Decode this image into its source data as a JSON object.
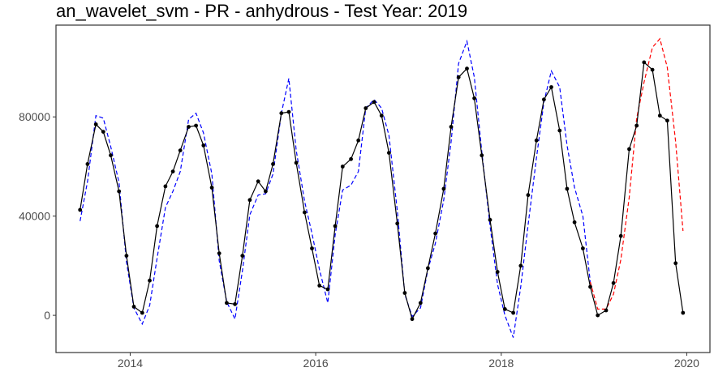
{
  "chart_data": {
    "type": "line",
    "title": "an_wavelet_svm - PR - anhydrous - Test Year: 2019",
    "xlabel": "",
    "ylabel": "",
    "xlim": [
      2013.2,
      2020.25
    ],
    "ylim": [
      -15000,
      117000
    ],
    "x_ticks": [
      2014,
      2016,
      2018,
      2020
    ],
    "y_ticks": [
      0,
      40000,
      80000
    ],
    "grid": false,
    "legend": "none",
    "colors": {
      "actual": "#000000",
      "fitted": "#0000ff",
      "forecast": "#ff0000"
    },
    "series": [
      {
        "role": "actual",
        "style": "solid-with-points",
        "x": [
          2013.46,
          2013.54,
          2013.63,
          2013.71,
          2013.79,
          2013.88,
          2013.96,
          2014.04,
          2014.13,
          2014.21,
          2014.29,
          2014.38,
          2014.46,
          2014.54,
          2014.63,
          2014.71,
          2014.79,
          2014.88,
          2014.96,
          2015.04,
          2015.13,
          2015.21,
          2015.29,
          2015.38,
          2015.46,
          2015.54,
          2015.63,
          2015.71,
          2015.79,
          2015.88,
          2015.96,
          2016.04,
          2016.13,
          2016.21,
          2016.29,
          2016.38,
          2016.46,
          2016.54,
          2016.63,
          2016.71,
          2016.79,
          2016.88,
          2016.96,
          2017.04,
          2017.13,
          2017.21,
          2017.29,
          2017.38,
          2017.46,
          2017.54,
          2017.63,
          2017.71,
          2017.79,
          2017.88,
          2017.96,
          2018.04,
          2018.13,
          2018.21,
          2018.29,
          2018.38,
          2018.46,
          2018.54,
          2018.63,
          2018.71,
          2018.79,
          2018.88,
          2018.96,
          2019.04,
          2019.13,
          2019.21,
          2019.29,
          2019.38,
          2019.46,
          2019.54,
          2019.63,
          2019.71,
          2019.79,
          2019.88,
          2019.96
        ],
        "y": [
          42500,
          61000,
          77000,
          74000,
          64500,
          50000,
          24000,
          3500,
          1000,
          14000,
          36000,
          52000,
          58000,
          66500,
          76000,
          76500,
          68500,
          51500,
          25000,
          5000,
          4500,
          24000,
          46500,
          54000,
          50000,
          61000,
          81500,
          82000,
          61500,
          41500,
          27000,
          12000,
          10500,
          36000,
          60000,
          63000,
          70500,
          83500,
          86000,
          80500,
          65500,
          37000,
          9000,
          -1500,
          5000,
          19000,
          33000,
          51000,
          76000,
          96000,
          99500,
          87500,
          64500,
          38500,
          17500,
          2500,
          1000,
          20000,
          48500,
          70500,
          87000,
          92000,
          74500,
          51000,
          37500,
          27000,
          11500,
          0,
          2000,
          13000,
          32000,
          67000,
          76500,
          102000,
          99000,
          80500,
          78500,
          21000,
          1000
        ]
      },
      {
        "role": "fitted",
        "style": "dashed",
        "x": [
          2013.46,
          2013.54,
          2013.63,
          2013.71,
          2013.79,
          2013.88,
          2013.96,
          2014.04,
          2014.13,
          2014.21,
          2014.29,
          2014.38,
          2014.46,
          2014.54,
          2014.63,
          2014.71,
          2014.79,
          2014.88,
          2014.96,
          2015.04,
          2015.13,
          2015.21,
          2015.29,
          2015.38,
          2015.46,
          2015.54,
          2015.63,
          2015.71,
          2015.79,
          2015.88,
          2015.96,
          2016.04,
          2016.13,
          2016.21,
          2016.29,
          2016.38,
          2016.46,
          2016.54,
          2016.63,
          2016.71,
          2016.79,
          2016.88,
          2016.96,
          2017.04,
          2017.13,
          2017.21,
          2017.29,
          2017.38,
          2017.46,
          2017.54,
          2017.63,
          2017.71,
          2017.79,
          2017.88,
          2017.96,
          2018.04,
          2018.13,
          2018.21,
          2018.29,
          2018.38,
          2018.46,
          2018.54,
          2018.63,
          2018.71,
          2018.79,
          2018.88,
          2018.96
        ],
        "y": [
          38000,
          54000,
          80500,
          79500,
          68000,
          53500,
          21500,
          3000,
          -3500,
          4000,
          23000,
          43500,
          50000,
          58000,
          79000,
          81500,
          73500,
          57000,
          22000,
          5500,
          -1500,
          18000,
          40500,
          48500,
          49000,
          57000,
          81500,
          95500,
          66500,
          46000,
          33000,
          18500,
          5000,
          32500,
          50500,
          52500,
          58000,
          83500,
          87000,
          83500,
          72500,
          42000,
          8500,
          -500,
          3000,
          18500,
          29000,
          46500,
          70000,
          101500,
          110500,
          96000,
          66000,
          36000,
          12500,
          0,
          -9000,
          11500,
          36500,
          63500,
          86000,
          98500,
          92000,
          68500,
          51500,
          40000,
          13500
        ]
      },
      {
        "role": "forecast",
        "style": "dashed",
        "x": [
          2018.96,
          2019.04,
          2019.13,
          2019.21,
          2019.29,
          2019.38,
          2019.46,
          2019.54,
          2019.63,
          2019.71,
          2019.79,
          2019.88,
          2019.96
        ],
        "y": [
          13500,
          2500,
          2500,
          8500,
          22500,
          47500,
          79500,
          94000,
          108000,
          111500,
          100000,
          70000,
          34000
        ]
      }
    ]
  }
}
